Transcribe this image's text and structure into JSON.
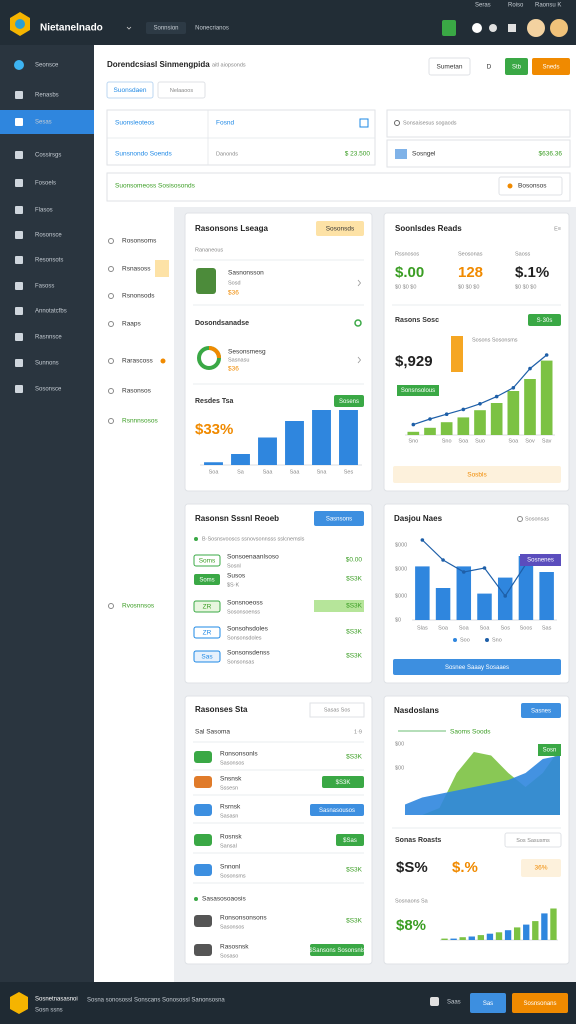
{
  "header": {
    "title": "Nietanelnado",
    "nav": [
      "Sonnsion",
      "Nonecrianos"
    ],
    "links": [
      "Seras",
      "Roiso",
      "Raonsu K"
    ]
  },
  "sidebar": [
    "Seonsce",
    "Renasbs",
    "Sesas",
    "Cossirsgs",
    "Fosoels",
    "Flasos",
    "Rosonsce",
    "Resonsots",
    "Fasoss",
    "Annotatcfbs",
    "Rasnnsce",
    "Sunnons",
    "Sosonsce"
  ],
  "toolbar": {
    "title": "Dorendcsiasl Sinmengpida",
    "subtitle": "aitl aiopsonds",
    "buttons": [
      "Sumetan",
      "D",
      "Stb",
      "Sneds"
    ]
  },
  "tabs": [
    "Suonsdaen",
    "Nelaaoos"
  ],
  "summary": {
    "label1": "Suonsleoteos",
    "value1": "Fosnd",
    "label2": "Sunsnondo Soends",
    "value2": "Danonds",
    "amount": "$ 23.500",
    "search": "Sonsaisesus sogaods",
    "item": "Sosngel",
    "item_amount": "$636.36"
  },
  "filter": {
    "label": "Suonsomeoss Sosisosonds",
    "dropdown": "Bosonsos"
  },
  "submenu": [
    "Rosonsoms",
    "Rsnasoss",
    "Rsnonsods",
    "Raaps",
    "Rarascoss",
    "Rasonsos",
    "Rsnnnsosos",
    "Rvosnnsos"
  ],
  "usage": {
    "title": "Rasonsons Lseaga",
    "badge": "Sosonsds",
    "caption": "Rananeous",
    "item": {
      "name": "Sasnonsson",
      "sub": "Sosd",
      "value": "$36"
    },
    "section": "Dosondsanadse",
    "donut": {
      "name": "Sesonsmesg",
      "sub": "Sasnasu",
      "value": "$36"
    },
    "chart_title": "Resdes Tsa",
    "button": "Sosens",
    "headline": "$33%",
    "chart": {
      "categories": [
        "Soa",
        "Sa",
        "Saa",
        "Saa",
        "Sna",
        "Ses"
      ],
      "values": [
        0.5,
        2,
        5,
        8,
        10,
        10
      ],
      "ylim": [
        0,
        10
      ],
      "color": "#2f86de"
    }
  },
  "stats": {
    "title": "Soonlsdes Reads",
    "menu": "E≡",
    "items": [
      {
        "label": "Rssnosos",
        "value": "$.00",
        "sub": "$0 $0 $0"
      },
      {
        "label": "Seosonas",
        "value": "128",
        "sub": "$0 $0 $0"
      },
      {
        "label": "Saoss",
        "value": "$.1%",
        "sub": "$0 $0 $0"
      }
    ],
    "section": "Rasons Sosc",
    "badge": "S·30s",
    "caption": "Sosons Sosonsms",
    "headline": "$,929",
    "tag": "Sonsnsolous",
    "chart": {
      "categories": [
        "Sno",
        null,
        "Sno",
        "Soa",
        "Suo",
        null,
        "Soa",
        "Sov",
        "Sav"
      ],
      "values": [
        0.4,
        0.9,
        1.6,
        2.2,
        3.1,
        4,
        5.5,
        7,
        9.3
      ],
      "line": [
        1.3,
        2,
        2.6,
        3.2,
        3.9,
        4.8,
        5.9,
        8.3,
        10
      ],
      "ylim": [
        0,
        10
      ],
      "color": "#7cc243",
      "line_color": "#1e5fa8"
    },
    "footer": "Sosbls"
  },
  "report": {
    "title": "Rasonsn Sssnl Reoeb",
    "button": "Sasnsons",
    "caption": "B·Sosnsvooscs ssnovsonnsss sslcnemsls",
    "rows": [
      {
        "badge": "Soms",
        "name": "Sonsoenaanlsoso",
        "sub": "Sosnl",
        "value": "$0.00"
      },
      {
        "badge": "Soms",
        "name": "Susos",
        "sub": "$S·K",
        "value": "$S3K"
      },
      {
        "badge": "ZR",
        "name": "Sonsnoeoss",
        "sub": "Sosonsoenss",
        "value": "$S3K"
      },
      {
        "badge": "ZR",
        "name": "Sonsohsdoles",
        "sub": "Sonsonsdoles",
        "value": "$S3K"
      },
      {
        "badge": "Sas",
        "name": "Sonsonsdenss",
        "sub": "Sonsonsas",
        "value": "$S3K"
      }
    ]
  },
  "sales": {
    "title": "Dasjou Naes",
    "filter": "Sosonsas",
    "y_labels": [
      "$000",
      "$000",
      "$000",
      "$0"
    ],
    "tag": "Sosnenes",
    "chart": {
      "categories": [
        "Slas",
        "Soa",
        "Soa",
        "Soa",
        "Sos",
        "Soos",
        "Sas"
      ],
      "values": [
        6.7,
        4,
        6.7,
        3.3,
        5.3,
        8,
        6
      ],
      "line": [
        10,
        7.5,
        6,
        6.5,
        3,
        7,
        8
      ],
      "ylim": [
        0,
        10
      ],
      "color": "#2f86de",
      "line_color": "#1e5fa8"
    },
    "legend": [
      "Soo",
      "Sno"
    ],
    "button": "Sosnee Saaay Sosaaes"
  },
  "list": {
    "title": "Rasonses Sta",
    "search": "Sasas Sos",
    "caption": "Sal Sasoma",
    "count": "1·9",
    "rows": [
      {
        "name": "Ronsonsonls",
        "sub": "Sasonsos",
        "value": "$S3K"
      },
      {
        "name": "Snsnsk",
        "sub": "Sssesn",
        "value": "$S3K"
      },
      {
        "name": "Rsrnsk",
        "sub": "Sasasn",
        "value": "Sasnasousos"
      },
      {
        "name": "Rosnsk",
        "sub": "Sansal",
        "value": "$Sas"
      },
      {
        "name": "Snnonl",
        "sub": "Sosonsms",
        "value": "$S3K"
      }
    ],
    "section": "Sasasosoaosis",
    "rows2": [
      {
        "name": "Ronsonsonsons",
        "sub": "Sasonsos",
        "value": "$S3K"
      },
      {
        "name": "Rasosnsk",
        "sub": "Sosaso",
        "value": "$Sansons Sosonsnls"
      }
    ]
  },
  "trends": {
    "title": "Nasdoslans",
    "button": "Sasnes",
    "legend": "Saoms Soods",
    "y_labels": [
      "$00",
      "$00"
    ],
    "tag": "Sosn",
    "area": {
      "series": [
        {
          "color": "#7cc243",
          "values": [
            0,
            0,
            1,
            6,
            9,
            8.5,
            6,
            4,
            6,
            9.5
          ]
        },
        {
          "color": "#2f86de",
          "values": [
            1.5,
            2.5,
            3,
            3.5,
            4,
            4.5,
            5,
            6,
            8,
            8.5
          ]
        }
      ],
      "ylim": [
        0,
        10
      ]
    },
    "section": "Sonas Roasts",
    "section_button": "Sos Sasusms",
    "values": [
      "$S%",
      "$.%",
      "36%"
    ],
    "caption": "Sosnaons Sa",
    "headline": "$8%",
    "bars": {
      "values": [
        0.4,
        0.4,
        0.8,
        1,
        1.4,
        1.8,
        2.2,
        2.8,
        3.6,
        4.4,
        5.4,
        7.6,
        9
      ],
      "ylim": [
        0,
        10
      ]
    }
  },
  "footer": {
    "title": "Sosnetnasasnoi",
    "sub": "Sosn ssns",
    "links": "Sosna sonosossl Sonscans Sonosossl Sanonsosna",
    "count": "Saas",
    "buttons": [
      "Sas",
      "Sosnsonans"
    ]
  }
}
